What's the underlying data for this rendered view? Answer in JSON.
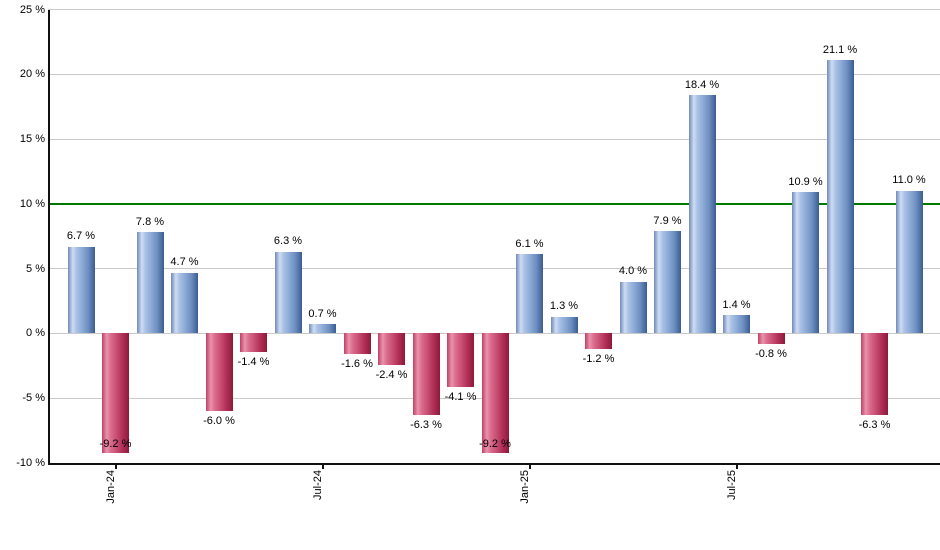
{
  "chart_data": {
    "type": "bar",
    "title": "",
    "xlabel": "",
    "ylabel": "",
    "ylim": [
      -10,
      25
    ],
    "grid": true,
    "legend": false,
    "bars": [
      {
        "value": 6.7,
        "label": "6.7 %"
      },
      {
        "value": -9.2,
        "label": "-9.2 %"
      },
      {
        "value": 7.8,
        "label": "7.8 %"
      },
      {
        "value": 4.7,
        "label": "4.7 %"
      },
      {
        "value": -6.0,
        "label": "-6.0 %"
      },
      {
        "value": -1.4,
        "label": "-1.4 %"
      },
      {
        "value": 6.3,
        "label": "6.3 %"
      },
      {
        "value": 0.7,
        "label": "0.7 %"
      },
      {
        "value": -1.6,
        "label": "-1.6 %"
      },
      {
        "value": -2.4,
        "label": "-2.4 %"
      },
      {
        "value": -6.3,
        "label": "-6.3 %"
      },
      {
        "value": -4.1,
        "label": "-4.1 %"
      },
      {
        "value": -9.2,
        "label": "-9.2 %"
      },
      {
        "value": 6.1,
        "label": "6.1 %"
      },
      {
        "value": 1.3,
        "label": "1.3 %"
      },
      {
        "value": -1.2,
        "label": "-1.2 %"
      },
      {
        "value": 4.0,
        "label": "4.0 %"
      },
      {
        "value": 7.9,
        "label": "7.9 %"
      },
      {
        "value": 18.4,
        "label": "18.4 %"
      },
      {
        "value": 1.4,
        "label": "1.4 %"
      },
      {
        "value": -0.8,
        "label": "-0.8 %"
      },
      {
        "value": 10.9,
        "label": "10.9 %"
      },
      {
        "value": 21.1,
        "label": "21.1 %"
      },
      {
        "value": -6.3,
        "label": "-6.3 %"
      },
      {
        "value": 11.0,
        "label": "11.0 %"
      }
    ],
    "yticks": [
      {
        "value": 25,
        "label": "25 %"
      },
      {
        "value": 20,
        "label": "20 %"
      },
      {
        "value": 15,
        "label": "15 %"
      },
      {
        "value": 10,
        "label": "10 %"
      },
      {
        "value": 5,
        "label": "5 %"
      },
      {
        "value": 0,
        "label": "0 %"
      },
      {
        "value": -5,
        "label": "-5 %"
      },
      {
        "value": -10,
        "label": "-10 %"
      }
    ],
    "xticks": [
      {
        "bar_index": 1,
        "label": "Jan-24"
      },
      {
        "bar_index": 7,
        "label": "Jul-24"
      },
      {
        "bar_index": 13,
        "label": "Jan-25"
      },
      {
        "bar_index": 19,
        "label": "Jul-25"
      }
    ],
    "reference_line": {
      "value": 10,
      "color": "#007b00"
    },
    "colors": {
      "positive_bar": "#7e9dce",
      "negative_bar": "#c23a62",
      "gridline": "#c9c9c9",
      "axis": "#111111",
      "label_text": "#000000",
      "background": "#ffffff"
    }
  }
}
